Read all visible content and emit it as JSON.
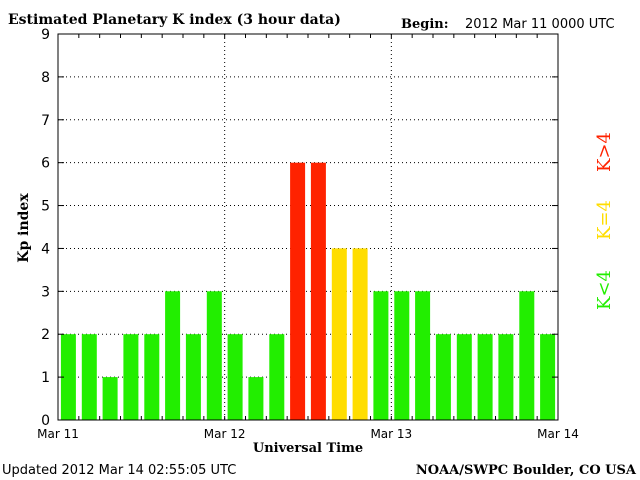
{
  "chart_data": {
    "type": "bar",
    "title": "Estimated Planetary K index (3 hour data)",
    "begin_label": "Begin:",
    "begin_value": "2012 Mar 11 0000 UTC",
    "ylabel": "Kp index",
    "xlabel": "Universal Time",
    "ylim": [
      0,
      9
    ],
    "yticks": [
      "0",
      "1",
      "2",
      "3",
      "4",
      "5",
      "6",
      "7",
      "8",
      "9"
    ],
    "xticks": [
      "Mar 11",
      "Mar 12",
      "Mar 13",
      "Mar 14"
    ],
    "grid": true,
    "values": [
      2,
      2,
      1,
      2,
      2,
      3,
      2,
      3,
      2,
      1,
      2,
      6,
      6,
      4,
      4,
      3,
      3,
      3,
      2,
      2,
      2,
      2,
      3,
      2
    ],
    "colors": {
      "below4": "#22ee00",
      "equal4": "#ffdd00",
      "above4": "#ff2200"
    },
    "legend": {
      "below": "K<4",
      "equal": "K=4",
      "above": "K>4"
    }
  },
  "footer": {
    "updated": "Updated 2012 Mar 14 02:55:05 UTC",
    "source": "NOAA/SWPC Boulder, CO USA"
  }
}
